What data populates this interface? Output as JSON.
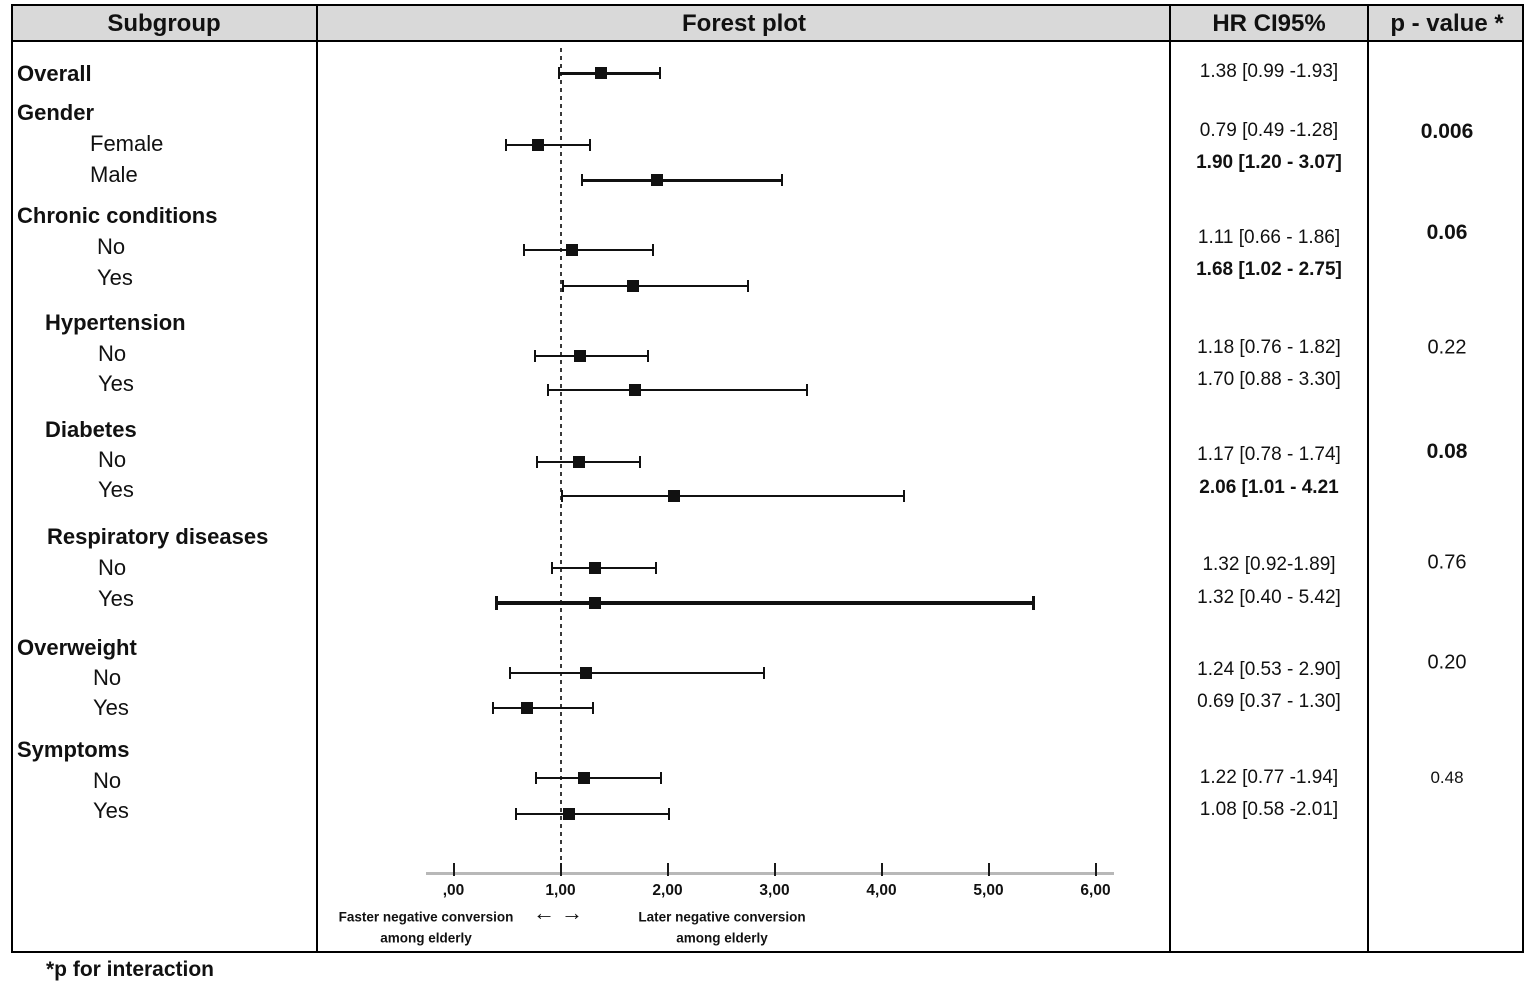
{
  "header": {
    "columns": [
      "Subgroup",
      "Forest plot",
      "HR CI95%",
      "p - value *"
    ]
  },
  "footnote": "*p for interaction",
  "axis": {
    "tick_labels": [
      ",00",
      "1,00",
      "2,00",
      "3,00",
      "4,00",
      "5,00",
      "6,00"
    ],
    "tick_values": [
      0,
      1,
      2,
      3,
      4,
      5,
      6
    ],
    "left_arrow": "←",
    "right_arrow": "→",
    "left_annotation": [
      "Faster negative conversion",
      "among elderly"
    ],
    "right_annotation": [
      "Later negative conversion",
      "among elderly"
    ]
  },
  "table": {
    "entries": [
      {
        "kind": "row",
        "label": "Overall",
        "label_bold": true,
        "hr": 1.38,
        "ci_low": 0.99,
        "ci_high": 1.93,
        "hr_ci_text": "1.38 [0.99 -1.93]",
        "hr_bold": false
      },
      {
        "kind": "group",
        "label": "Gender",
        "label_bold": true
      },
      {
        "kind": "row",
        "label": "Female",
        "label_bold": false,
        "hr": 0.79,
        "ci_low": 0.49,
        "ci_high": 1.28,
        "hr_ci_text": "0.79 [0.49 -1.28]",
        "hr_bold": false
      },
      {
        "kind": "row",
        "label": "Male",
        "label_bold": false,
        "hr": 1.9,
        "ci_low": 1.2,
        "ci_high": 3.07,
        "hr_ci_text": "1.90 [1.20 - 3.07]",
        "hr_bold": true
      },
      {
        "kind": "group",
        "label": "Chronic conditions",
        "label_bold": true
      },
      {
        "kind": "row",
        "label": "No",
        "label_bold": false,
        "hr": 1.11,
        "ci_low": 0.66,
        "ci_high": 1.86,
        "hr_ci_text": "1.11 [0.66 - 1.86]",
        "hr_bold": false
      },
      {
        "kind": "row",
        "label": "Yes",
        "label_bold": false,
        "hr": 1.68,
        "ci_low": 1.02,
        "ci_high": 2.75,
        "hr_ci_text": "1.68 [1.02 - 2.75]",
        "hr_bold": true
      },
      {
        "kind": "group",
        "label": "Hypertension",
        "label_bold": true
      },
      {
        "kind": "row",
        "label": "No",
        "label_bold": false,
        "hr": 1.18,
        "ci_low": 0.76,
        "ci_high": 1.82,
        "hr_ci_text": "1.18 [0.76 - 1.82]",
        "hr_bold": false
      },
      {
        "kind": "row",
        "label": "Yes",
        "label_bold": false,
        "hr": 1.7,
        "ci_low": 0.88,
        "ci_high": 3.3,
        "hr_ci_text": "1.70 [0.88 - 3.30]",
        "hr_bold": false
      },
      {
        "kind": "group",
        "label": "Diabetes",
        "label_bold": true
      },
      {
        "kind": "row",
        "label": "No",
        "label_bold": false,
        "hr": 1.17,
        "ci_low": 0.78,
        "ci_high": 1.74,
        "hr_ci_text": "1.17 [0.78 - 1.74]",
        "hr_bold": false
      },
      {
        "kind": "row",
        "label": "Yes",
        "label_bold": false,
        "hr": 2.06,
        "ci_low": 1.01,
        "ci_high": 4.21,
        "hr_ci_text": "2.06 [1.01 - 4.21",
        "hr_bold": true
      },
      {
        "kind": "group",
        "label": "Respiratory diseases",
        "label_bold": true
      },
      {
        "kind": "row",
        "label": "No",
        "label_bold": false,
        "hr": 1.32,
        "ci_low": 0.92,
        "ci_high": 1.89,
        "hr_ci_text": "1.32 [0.92-1.89]",
        "hr_bold": false
      },
      {
        "kind": "row",
        "label": "Yes",
        "label_bold": false,
        "hr": 1.32,
        "ci_low": 0.4,
        "ci_high": 5.42,
        "hr_ci_text": "1.32 [0.40 - 5.42]",
        "hr_bold": false
      },
      {
        "kind": "group",
        "label": "Overweight",
        "label_bold": true
      },
      {
        "kind": "row",
        "label": "No",
        "label_bold": false,
        "hr": 1.24,
        "ci_low": 0.53,
        "ci_high": 2.9,
        "hr_ci_text": "1.24 [0.53 - 2.90]",
        "hr_bold": false
      },
      {
        "kind": "row",
        "label": "Yes",
        "label_bold": false,
        "hr": 0.69,
        "ci_low": 0.37,
        "ci_high": 1.3,
        "hr_ci_text": "0.69 [0.37 - 1.30]",
        "hr_bold": false
      },
      {
        "kind": "group",
        "label": "Symptoms",
        "label_bold": true
      },
      {
        "kind": "row",
        "label": "No",
        "label_bold": false,
        "hr": 1.22,
        "ci_low": 0.77,
        "ci_high": 1.94,
        "hr_ci_text": "1.22 [0.77 -1.94]",
        "hr_bold": false
      },
      {
        "kind": "row",
        "label": "Yes",
        "label_bold": false,
        "hr": 1.08,
        "ci_low": 0.58,
        "ci_high": 2.01,
        "hr_ci_text": "1.08 [0.58 -2.01]",
        "hr_bold": false
      }
    ],
    "p_values": [
      {
        "group": "Gender",
        "text": "0.006",
        "bold": true,
        "small": false
      },
      {
        "group": "Chronic conditions",
        "text": "0.06",
        "bold": true,
        "small": false
      },
      {
        "group": "Hypertension",
        "text": "0.22",
        "bold": false,
        "small": false
      },
      {
        "group": "Diabetes",
        "text": "0.08",
        "bold": true,
        "small": false
      },
      {
        "group": "Respiratory diseases",
        "text": "0.76",
        "bold": false,
        "small": false
      },
      {
        "group": "Overweight",
        "text": "0.20",
        "bold": false,
        "small": false
      },
      {
        "group": "Symptoms",
        "text": "0.48",
        "bold": false,
        "small": true
      }
    ]
  },
  "chart_data": {
    "type": "scatter",
    "variant": "forest-plot",
    "title": "Forest plot",
    "xlabel": "",
    "ylabel": "",
    "xlim": [
      -0.4,
      6.3
    ],
    "x_ticks": [
      0,
      1,
      2,
      3,
      4,
      5,
      6
    ],
    "x_tick_labels": [
      ",00",
      "1,00",
      "2,00",
      "3,00",
      "4,00",
      "5,00",
      "6,00"
    ],
    "reference_line_x": 1.0,
    "marker": "square",
    "series": [
      {
        "subgroup": "Overall",
        "category": null,
        "hr": 1.38,
        "ci_low": 0.99,
        "ci_high": 1.93,
        "p_interaction": null
      },
      {
        "subgroup": "Gender",
        "category": "Female",
        "hr": 0.79,
        "ci_low": 0.49,
        "ci_high": 1.28,
        "p_interaction": 0.006
      },
      {
        "subgroup": "Gender",
        "category": "Male",
        "hr": 1.9,
        "ci_low": 1.2,
        "ci_high": 3.07,
        "p_interaction": 0.006
      },
      {
        "subgroup": "Chronic conditions",
        "category": "No",
        "hr": 1.11,
        "ci_low": 0.66,
        "ci_high": 1.86,
        "p_interaction": 0.06
      },
      {
        "subgroup": "Chronic conditions",
        "category": "Yes",
        "hr": 1.68,
        "ci_low": 1.02,
        "ci_high": 2.75,
        "p_interaction": 0.06
      },
      {
        "subgroup": "Hypertension",
        "category": "No",
        "hr": 1.18,
        "ci_low": 0.76,
        "ci_high": 1.82,
        "p_interaction": 0.22
      },
      {
        "subgroup": "Hypertension",
        "category": "Yes",
        "hr": 1.7,
        "ci_low": 0.88,
        "ci_high": 3.3,
        "p_interaction": 0.22
      },
      {
        "subgroup": "Diabetes",
        "category": "No",
        "hr": 1.17,
        "ci_low": 0.78,
        "ci_high": 1.74,
        "p_interaction": 0.08
      },
      {
        "subgroup": "Diabetes",
        "category": "Yes",
        "hr": 2.06,
        "ci_low": 1.01,
        "ci_high": 4.21,
        "p_interaction": 0.08
      },
      {
        "subgroup": "Respiratory diseases",
        "category": "No",
        "hr": 1.32,
        "ci_low": 0.92,
        "ci_high": 1.89,
        "p_interaction": 0.76
      },
      {
        "subgroup": "Respiratory diseases",
        "category": "Yes",
        "hr": 1.32,
        "ci_low": 0.4,
        "ci_high": 5.42,
        "p_interaction": 0.76
      },
      {
        "subgroup": "Overweight",
        "category": "No",
        "hr": 1.24,
        "ci_low": 0.53,
        "ci_high": 2.9,
        "p_interaction": 0.2
      },
      {
        "subgroup": "Overweight",
        "category": "Yes",
        "hr": 0.69,
        "ci_low": 0.37,
        "ci_high": 1.3,
        "p_interaction": 0.2
      },
      {
        "subgroup": "Symptoms",
        "category": "No",
        "hr": 1.22,
        "ci_low": 0.77,
        "ci_high": 1.94,
        "p_interaction": 0.48
      },
      {
        "subgroup": "Symptoms",
        "category": "Yes",
        "hr": 1.08,
        "ci_low": 0.58,
        "ci_high": 2.01,
        "p_interaction": 0.48
      }
    ],
    "direction_annotations": {
      "left": "Faster negative conversion among elderly",
      "right": "Later negative conversion among elderly"
    },
    "legend": null,
    "grid": false
  },
  "colors": {
    "header_bg": "#d9d9d9",
    "border": "#000000",
    "marker": "#111111",
    "axis_line": "#b8b8b8",
    "text": "#111111"
  }
}
